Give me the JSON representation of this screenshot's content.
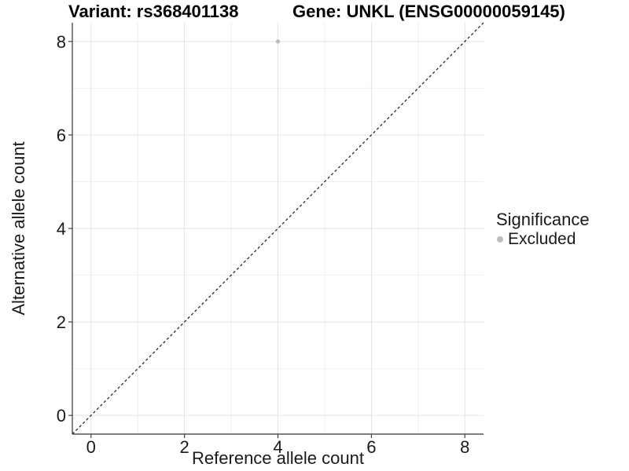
{
  "header": {
    "variant_title": "Variant: rs368401138",
    "gene_title": "Gene: UNKL (ENSG00000059145)"
  },
  "chart_data": {
    "type": "scatter",
    "title": "Variant: rs368401138   Gene: UNKL (ENSG00000059145)",
    "xlabel": "Reference allele count",
    "ylabel": "Alternative allele count",
    "xlim": [
      -0.4,
      8.4
    ],
    "ylim": [
      -0.4,
      8.4
    ],
    "xticks": [
      0,
      2,
      4,
      6,
      8
    ],
    "yticks": [
      0,
      2,
      4,
      6,
      8
    ],
    "xminor": [
      1,
      3,
      5,
      7
    ],
    "yminor": [
      1,
      3,
      5,
      7
    ],
    "grid": "major and minor gridlines, white panel",
    "reference_line": {
      "kind": "identity y=x",
      "from": [
        -0.4,
        -0.4
      ],
      "to": [
        8.4,
        8.4
      ],
      "style": "dashed",
      "color": "#1a1a1a"
    },
    "series": [
      {
        "name": "Excluded",
        "color": "#bdbdbd",
        "points": [
          {
            "x": 4,
            "y": 8
          }
        ]
      }
    ],
    "legend": {
      "title": "Significance",
      "position": "right",
      "entries": [
        {
          "label": "Excluded",
          "color": "#bdbdbd",
          "marker": "circle"
        }
      ]
    }
  },
  "style_colors": {
    "background": "#ffffff",
    "grid_major": "#e3e3e3",
    "grid_minor": "#f0f0f0",
    "axis_line": "#333333",
    "tick_mark": "#333333",
    "tick_text": "#1a1a1a",
    "title_text": "#000000"
  }
}
